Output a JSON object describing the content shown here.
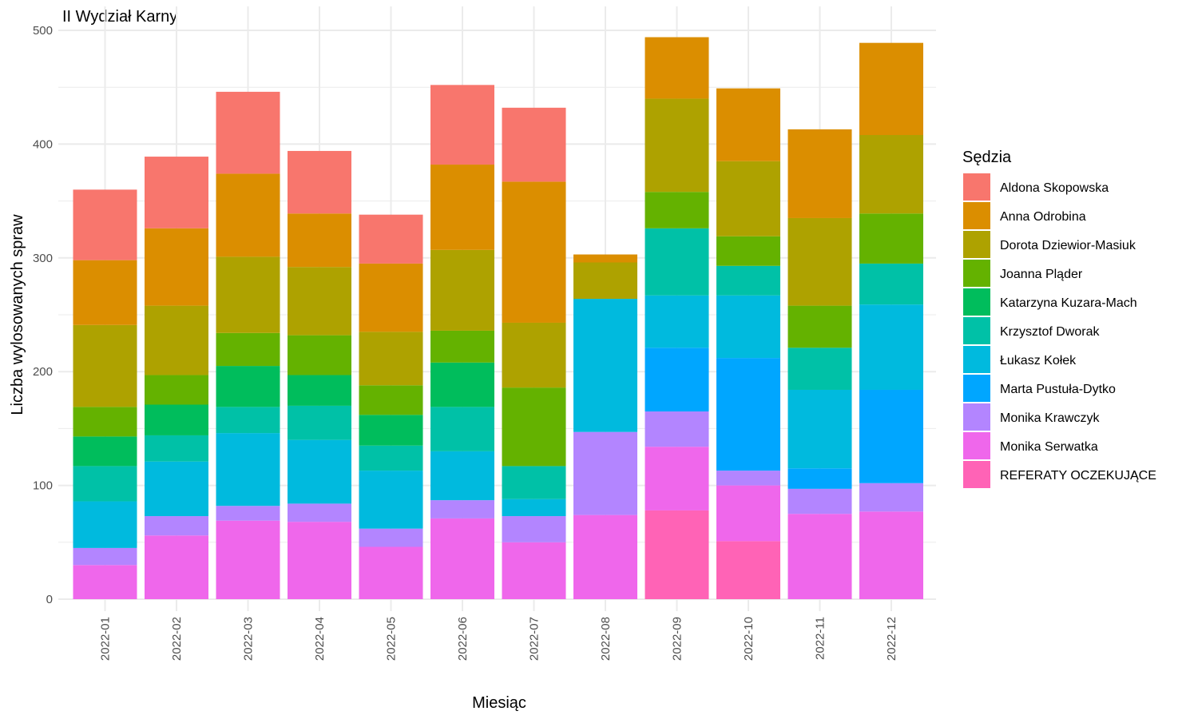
{
  "chart_data": {
    "type": "bar",
    "stacked": true,
    "title": "II Wydział Karny",
    "xlabel": "Miesiąc",
    "ylabel": "Liczba wylosowanych spraw",
    "ylim": [
      0,
      500
    ],
    "yticks": [
      0,
      100,
      200,
      300,
      400,
      500
    ],
    "grid": true,
    "legend_title": "Sędzia",
    "legend_position": "right",
    "categories": [
      "2022-01",
      "2022-02",
      "2022-03",
      "2022-04",
      "2022-05",
      "2022-06",
      "2022-07",
      "2022-08",
      "2022-09",
      "2022-10",
      "2022-11",
      "2022-12"
    ],
    "series": [
      {
        "name": "Aldona Skopowska",
        "color": "#F8766D",
        "values": [
          62,
          63,
          72,
          55,
          43,
          70,
          65,
          0,
          0,
          0,
          0,
          0
        ]
      },
      {
        "name": "Anna Odrobina",
        "color": "#DB8E00",
        "values": [
          57,
          68,
          73,
          47,
          60,
          75,
          124,
          7,
          54,
          64,
          78,
          81
        ]
      },
      {
        "name": "Dorota Dziewior-Masiuk",
        "color": "#AEA200",
        "values": [
          72,
          61,
          67,
          60,
          47,
          71,
          57,
          32,
          82,
          66,
          77,
          69
        ]
      },
      {
        "name": "Joanna Pląder",
        "color": "#64B200",
        "values": [
          26,
          26,
          29,
          35,
          26,
          28,
          69,
          0,
          32,
          26,
          37,
          44
        ]
      },
      {
        "name": "Katarzyna Kuzara-Mach",
        "color": "#00BD5C",
        "values": [
          26,
          27,
          36,
          27,
          27,
          39,
          0,
          0,
          0,
          0,
          0,
          0
        ]
      },
      {
        "name": "Krzysztof Dworak",
        "color": "#00C1A7",
        "values": [
          31,
          23,
          23,
          30,
          22,
          39,
          29,
          0,
          59,
          26,
          37,
          36
        ]
      },
      {
        "name": "Łukasz Kołek",
        "color": "#00BADE",
        "values": [
          41,
          48,
          64,
          56,
          51,
          43,
          15,
          117,
          46,
          55,
          69,
          75
        ]
      },
      {
        "name": "Marta Pustuła-Dytko",
        "color": "#00A6FF",
        "values": [
          0,
          0,
          0,
          0,
          0,
          0,
          0,
          0,
          56,
          99,
          18,
          82
        ]
      },
      {
        "name": "Monika Krawczyk",
        "color": "#B385FF",
        "values": [
          15,
          17,
          13,
          16,
          16,
          16,
          23,
          73,
          31,
          13,
          22,
          25
        ]
      },
      {
        "name": "Monika Serwatka",
        "color": "#EF67EB",
        "values": [
          30,
          56,
          69,
          68,
          46,
          71,
          50,
          74,
          56,
          49,
          75,
          77
        ]
      },
      {
        "name": "REFERATY OCZEKUJĄCE",
        "color": "#FF63B6",
        "values": [
          0,
          0,
          0,
          0,
          0,
          0,
          0,
          0,
          78,
          51,
          0,
          0
        ]
      }
    ]
  }
}
